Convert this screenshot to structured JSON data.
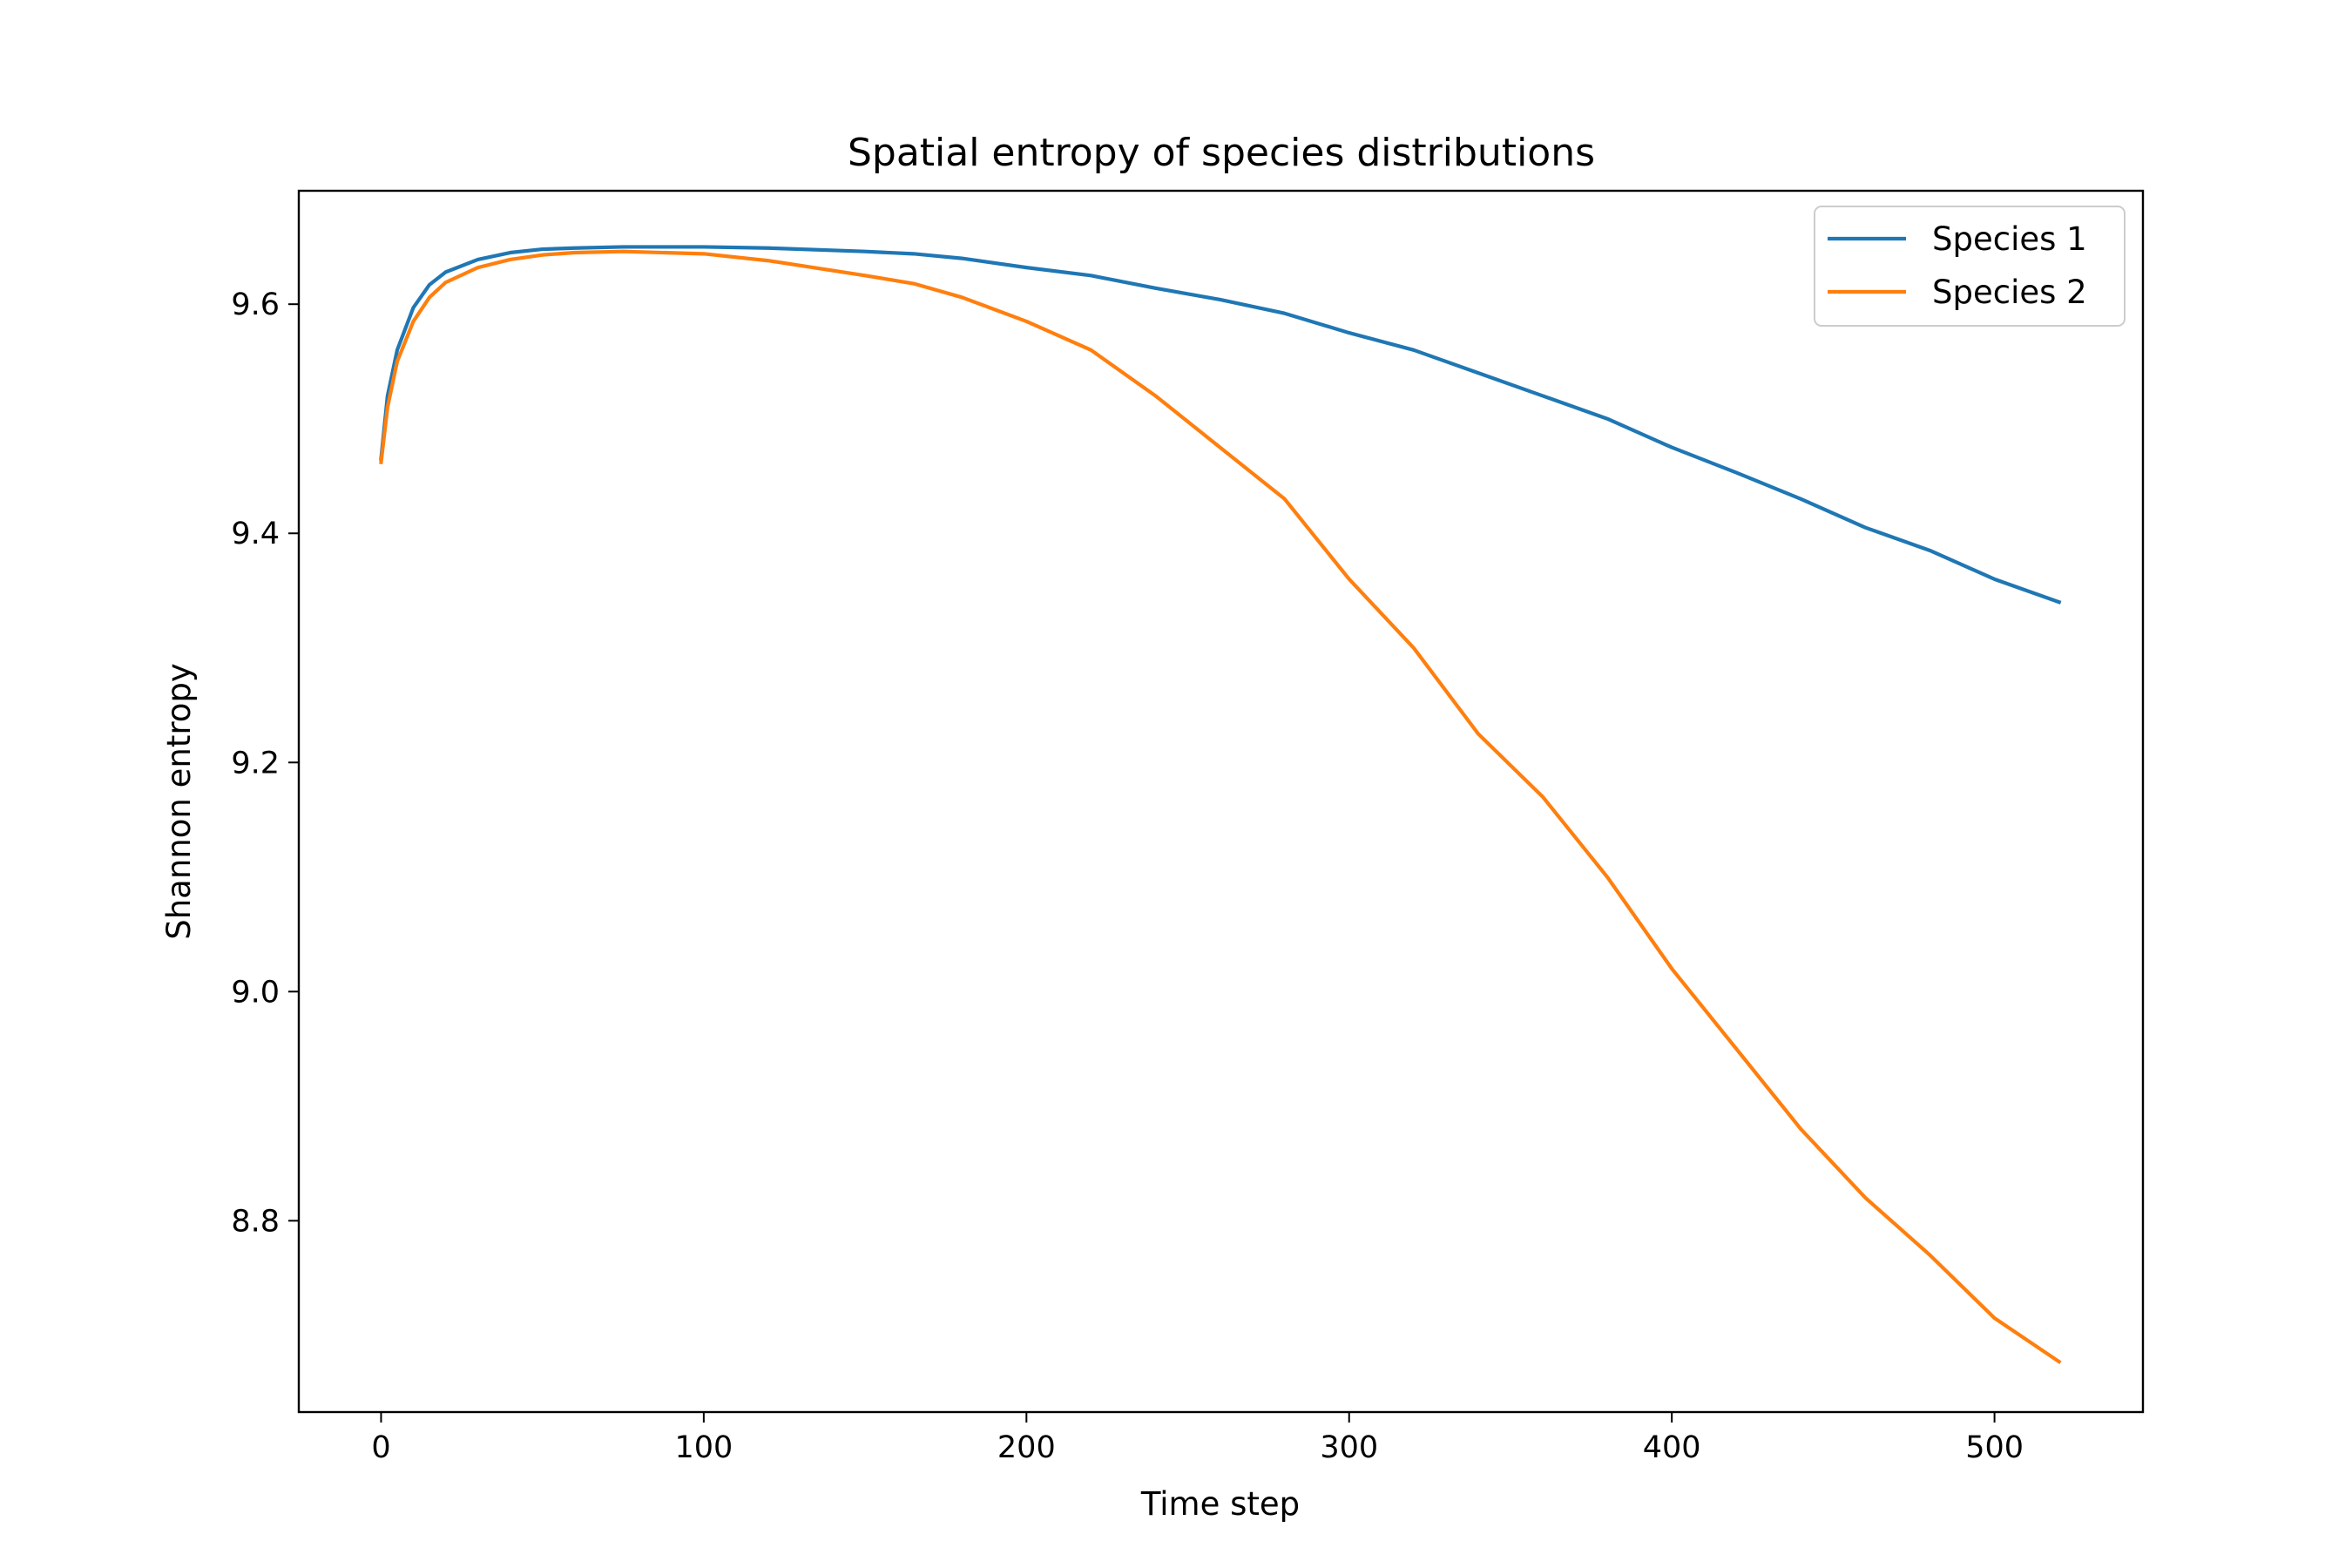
{
  "chart_data": {
    "type": "line",
    "title": "Spatial entropy of species distributions",
    "xlabel": "Time step",
    "ylabel": "Shannon entropy",
    "xlim": [
      -25.5,
      546
    ],
    "ylim": [
      8.633,
      9.699
    ],
    "xticks": [
      0,
      100,
      200,
      300,
      400,
      500
    ],
    "xtick_labels": [
      "0",
      "100",
      "200",
      "300",
      "400",
      "500"
    ],
    "yticks": [
      8.8,
      9.0,
      9.2,
      9.4,
      9.6
    ],
    "ytick_labels": [
      "8.8",
      "9.0",
      "9.2",
      "9.4",
      "9.6"
    ],
    "grid": false,
    "legend_position": "top-right",
    "series": [
      {
        "name": "Species 1",
        "color": "#1f77b4",
        "x": [
          0,
          2,
          5,
          10,
          15,
          20,
          30,
          40,
          50,
          60,
          75,
          100,
          120,
          150,
          165,
          180,
          200,
          220,
          240,
          260,
          280,
          300,
          320,
          340,
          360,
          380,
          400,
          420,
          440,
          460,
          480,
          500,
          520
        ],
        "y": [
          9.465,
          9.52,
          9.56,
          9.597,
          9.617,
          9.628,
          9.639,
          9.645,
          9.648,
          9.649,
          9.65,
          9.65,
          9.649,
          9.646,
          9.644,
          9.64,
          9.632,
          9.625,
          9.614,
          9.604,
          9.592,
          9.575,
          9.56,
          9.54,
          9.52,
          9.5,
          9.475,
          9.453,
          9.43,
          9.405,
          9.385,
          9.36,
          9.34
        ]
      },
      {
        "name": "Species 2",
        "color": "#ff7f0e",
        "x": [
          0,
          2,
          5,
          10,
          15,
          20,
          30,
          40,
          50,
          60,
          75,
          100,
          120,
          150,
          165,
          180,
          200,
          220,
          240,
          260,
          280,
          300,
          320,
          340,
          360,
          380,
          400,
          420,
          440,
          460,
          480,
          500,
          520
        ],
        "y": [
          9.462,
          9.51,
          9.55,
          9.585,
          9.606,
          9.619,
          9.632,
          9.639,
          9.643,
          9.645,
          9.646,
          9.644,
          9.638,
          9.625,
          9.618,
          9.606,
          9.585,
          9.56,
          9.52,
          9.475,
          9.43,
          9.36,
          9.3,
          9.225,
          9.17,
          9.1,
          9.02,
          8.95,
          8.88,
          8.82,
          8.77,
          8.715,
          8.677
        ]
      }
    ]
  }
}
